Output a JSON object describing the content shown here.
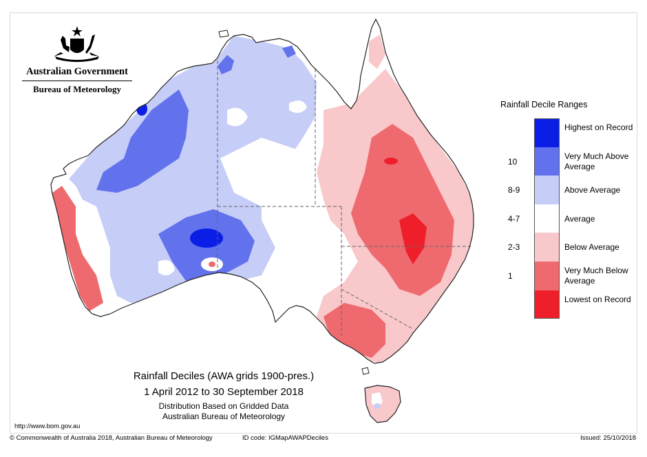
{
  "header": {
    "government": "Australian Government",
    "bureau": "Bureau of Meteorology"
  },
  "legend": {
    "title": "Rainfall Decile Ranges",
    "items": [
      {
        "code": "",
        "label": "Highest on Record",
        "color": "#0a1ee6"
      },
      {
        "code": "10",
        "label": "Very Much Above Average",
        "color": "#6272ec"
      },
      {
        "code": "8-9",
        "label": "Above Average",
        "color": "#c6cdf6"
      },
      {
        "code": "4-7",
        "label": "Average",
        "color": "#ffffff"
      },
      {
        "code": "2-3",
        "label": "Below Average",
        "color": "#f8c8cb"
      },
      {
        "code": "1",
        "label": "Very Much Below Average",
        "color": "#ee6a6e"
      },
      {
        "code": "",
        "label": "Lowest on Record",
        "color": "#ee1f2a"
      }
    ]
  },
  "caption": {
    "line1": "Rainfall Deciles (AWA grids 1900-pres.)",
    "line2": "1 April 2012 to 30 September 2018",
    "line3": "Distribution Based on Gridded Data",
    "line4": "Australian Bureau of Meteorology"
  },
  "footer": {
    "url": "http://www.bom.gov.au",
    "copyright": "© Commonwealth of Australia 2018, Australian Bureau of Meteorology",
    "id_code": "ID code: IGMapAWAPDeciles",
    "issued": "Issued: 25/10/2018"
  }
}
